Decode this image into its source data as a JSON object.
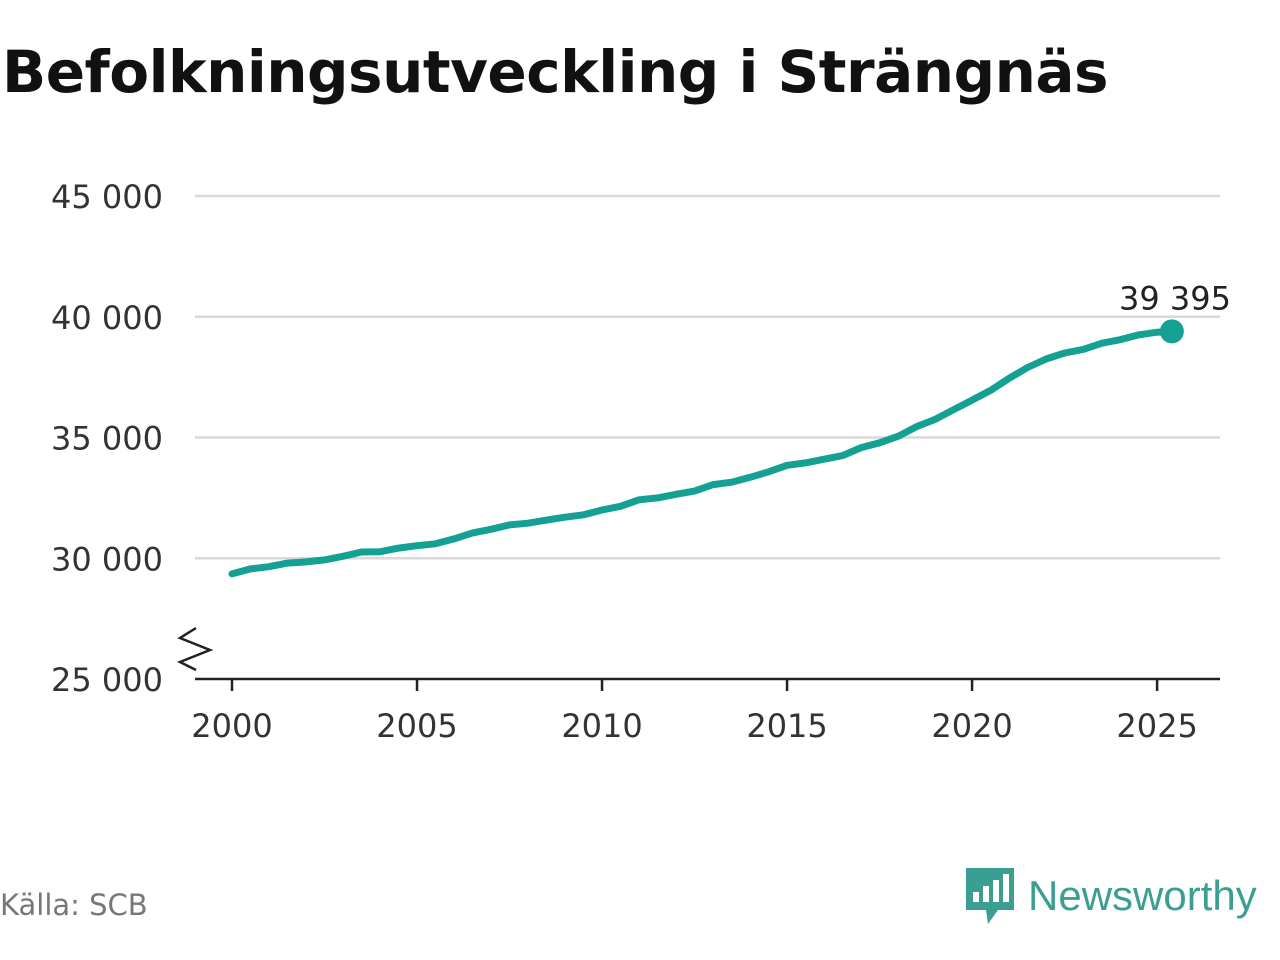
{
  "title": "Befolkningsutveckling i Strängnäs",
  "source": "Källa: SCB",
  "brand": {
    "name": "Newsworthy",
    "icon": "newsworthy-logo-icon",
    "color": "#3a9e93"
  },
  "chart_data": {
    "type": "line",
    "title": "Befolkningsutveckling i Strängnäs",
    "xlabel": "",
    "ylabel": "",
    "xlim": [
      1999,
      2026.7
    ],
    "ylim": [
      25000,
      45000
    ],
    "x_ticks": [
      2000,
      2005,
      2010,
      2015,
      2020,
      2025
    ],
    "x_tick_labels": [
      "2000",
      "2005",
      "2010",
      "2015",
      "2020",
      "2025"
    ],
    "y_ticks": [
      25000,
      30000,
      35000,
      40000,
      45000
    ],
    "y_tick_labels": [
      "25 000",
      "30 000",
      "35 000",
      "40 000",
      "45 000"
    ],
    "y_axis_break": true,
    "grid": true,
    "line_color": "#14a193",
    "series": [
      {
        "values": [
          [
            2000.0,
            29350
          ],
          [
            2000.5,
            29560
          ],
          [
            2001.0,
            29650
          ],
          [
            2001.5,
            29800
          ],
          [
            2002.0,
            29850
          ],
          [
            2002.5,
            29930
          ],
          [
            2003.0,
            30080
          ],
          [
            2003.5,
            30260
          ],
          [
            2004.0,
            30270
          ],
          [
            2004.5,
            30420
          ],
          [
            2005.0,
            30520
          ],
          [
            2005.5,
            30600
          ],
          [
            2006.0,
            30800
          ],
          [
            2006.5,
            31050
          ],
          [
            2007.0,
            31200
          ],
          [
            2007.5,
            31380
          ],
          [
            2008.0,
            31450
          ],
          [
            2008.5,
            31580
          ],
          [
            2009.0,
            31700
          ],
          [
            2009.5,
            31800
          ],
          [
            2010.0,
            32000
          ],
          [
            2010.5,
            32150
          ],
          [
            2011.0,
            32420
          ],
          [
            2011.5,
            32500
          ],
          [
            2012.0,
            32650
          ],
          [
            2012.5,
            32780
          ],
          [
            2013.0,
            33050
          ],
          [
            2013.5,
            33150
          ],
          [
            2014.0,
            33350
          ],
          [
            2014.5,
            33580
          ],
          [
            2015.0,
            33850
          ],
          [
            2015.5,
            33950
          ],
          [
            2016.0,
            34100
          ],
          [
            2016.5,
            34250
          ],
          [
            2017.0,
            34580
          ],
          [
            2017.5,
            34780
          ],
          [
            2018.0,
            35050
          ],
          [
            2018.5,
            35450
          ],
          [
            2019.0,
            35750
          ],
          [
            2019.5,
            36150
          ],
          [
            2020.0,
            36550
          ],
          [
            2020.5,
            36950
          ],
          [
            2021.0,
            37450
          ],
          [
            2021.5,
            37900
          ],
          [
            2022.0,
            38250
          ],
          [
            2022.5,
            38500
          ],
          [
            2023.0,
            38650
          ],
          [
            2023.5,
            38900
          ],
          [
            2024.0,
            39050
          ],
          [
            2024.5,
            39250
          ],
          [
            2025.0,
            39360
          ],
          [
            2025.4,
            39395
          ]
        ]
      }
    ],
    "annotation": {
      "x": 2025.4,
      "y": 39395,
      "label": "39 395"
    }
  }
}
